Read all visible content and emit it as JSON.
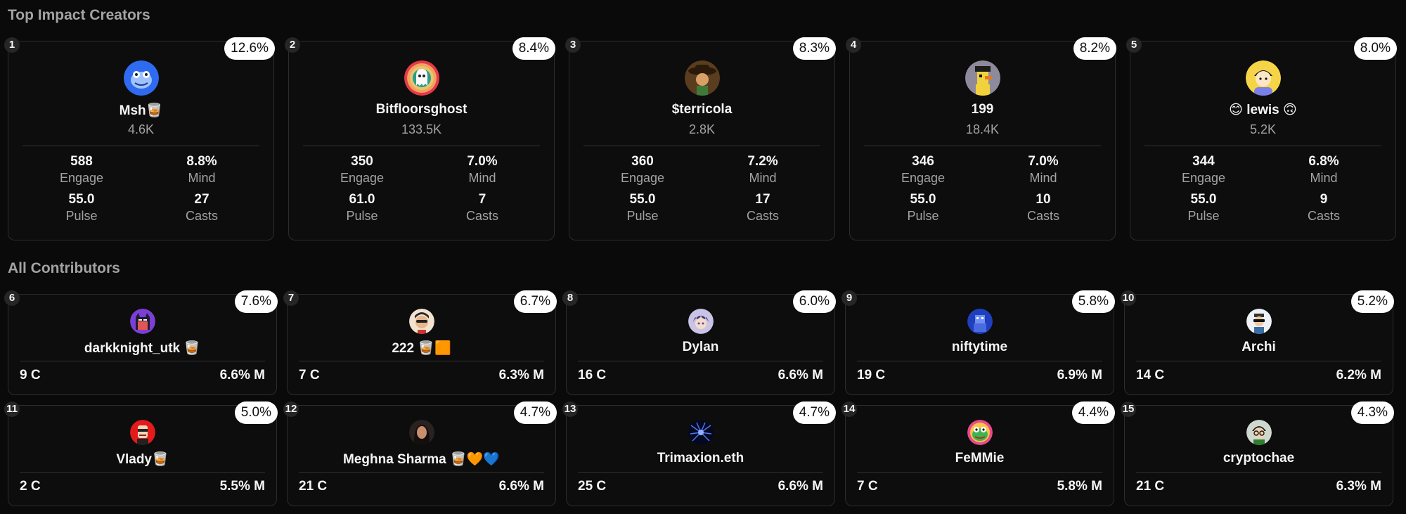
{
  "sections": {
    "top_title": "Top Impact Creators",
    "all_title": "All Contributors"
  },
  "top_creators": [
    {
      "rank": "1",
      "percent": "12.6%",
      "name": "Msh🥃",
      "followers": "4.6K",
      "engage": "588",
      "engage_label": "Engage",
      "mind": "8.8%",
      "mind_label": "Mind",
      "pulse": "55.0",
      "pulse_label": "Pulse",
      "casts": "27",
      "casts_label": "Casts",
      "avatar": "blue-frog-avatar"
    },
    {
      "rank": "2",
      "percent": "8.4%",
      "name": "Bitfloorsghost",
      "followers": "133.5K",
      "engage": "350",
      "engage_label": "Engage",
      "mind": "7.0%",
      "mind_label": "Mind",
      "pulse": "61.0",
      "pulse_label": "Pulse",
      "casts": "7",
      "casts_label": "Casts",
      "avatar": "rainbow-ghost-avatar"
    },
    {
      "rank": "3",
      "percent": "8.3%",
      "name": "$terricola",
      "followers": "2.8K",
      "engage": "360",
      "engage_label": "Engage",
      "mind": "7.2%",
      "mind_label": "Mind",
      "pulse": "55.0",
      "pulse_label": "Pulse",
      "casts": "17",
      "casts_label": "Casts",
      "avatar": "cowboy-portrait-avatar"
    },
    {
      "rank": "4",
      "percent": "8.2%",
      "name": "199",
      "followers": "18.4K",
      "engage": "346",
      "engage_label": "Engage",
      "mind": "7.0%",
      "mind_label": "Mind",
      "pulse": "55.0",
      "pulse_label": "Pulse",
      "casts": "10",
      "casts_label": "Casts",
      "avatar": "pixel-duck-avatar"
    },
    {
      "rank": "5",
      "percent": "8.0%",
      "name": "😊 lewis 🙃",
      "followers": "5.2K",
      "engage": "344",
      "engage_label": "Engage",
      "mind": "6.8%",
      "mind_label": "Mind",
      "pulse": "55.0",
      "pulse_label": "Pulse",
      "casts": "9",
      "casts_label": "Casts",
      "avatar": "cartoon-person-avatar"
    }
  ],
  "contributors": [
    {
      "rank": "6",
      "percent": "7.6%",
      "name": "darkknight_utk 🥃",
      "casts": "9 C",
      "mind": "6.6% M",
      "avatar": "batman-avatar"
    },
    {
      "rank": "7",
      "percent": "6.7%",
      "name": "222 🥃🟧",
      "casts": "7 C",
      "mind": "6.3% M",
      "avatar": "masked-face-avatar"
    },
    {
      "rank": "8",
      "percent": "6.0%",
      "name": "Dylan",
      "casts": "16 C",
      "mind": "6.6% M",
      "avatar": "anime-avatar"
    },
    {
      "rank": "9",
      "percent": "5.8%",
      "name": "niftytime",
      "casts": "19 C",
      "mind": "6.9% M",
      "avatar": "blue-robot-avatar"
    },
    {
      "rank": "10",
      "percent": "5.2%",
      "name": "Archi",
      "casts": "14 C",
      "mind": "6.2% M",
      "avatar": "sunglasses-avatar"
    },
    {
      "rank": "11",
      "percent": "5.0%",
      "name": "Vlady🥃",
      "casts": "2 C",
      "mind": "5.5% M",
      "avatar": "red-character-avatar"
    },
    {
      "rank": "12",
      "percent": "4.7%",
      "name": "Meghna Sharma 🥃🧡💙",
      "casts": "21 C",
      "mind": "6.6% M",
      "avatar": "woman-portrait-avatar"
    },
    {
      "rank": "13",
      "percent": "4.7%",
      "name": "Trimaxion.eth",
      "casts": "25 C",
      "mind": "6.6% M",
      "avatar": "spider-avatar"
    },
    {
      "rank": "14",
      "percent": "4.4%",
      "name": "FeMMie",
      "casts": "7 C",
      "mind": "5.8% M",
      "avatar": "colorful-frog-avatar"
    },
    {
      "rank": "15",
      "percent": "4.3%",
      "name": "cryptochae",
      "casts": "21 C",
      "mind": "6.3% M",
      "avatar": "glasses-character-avatar"
    }
  ]
}
